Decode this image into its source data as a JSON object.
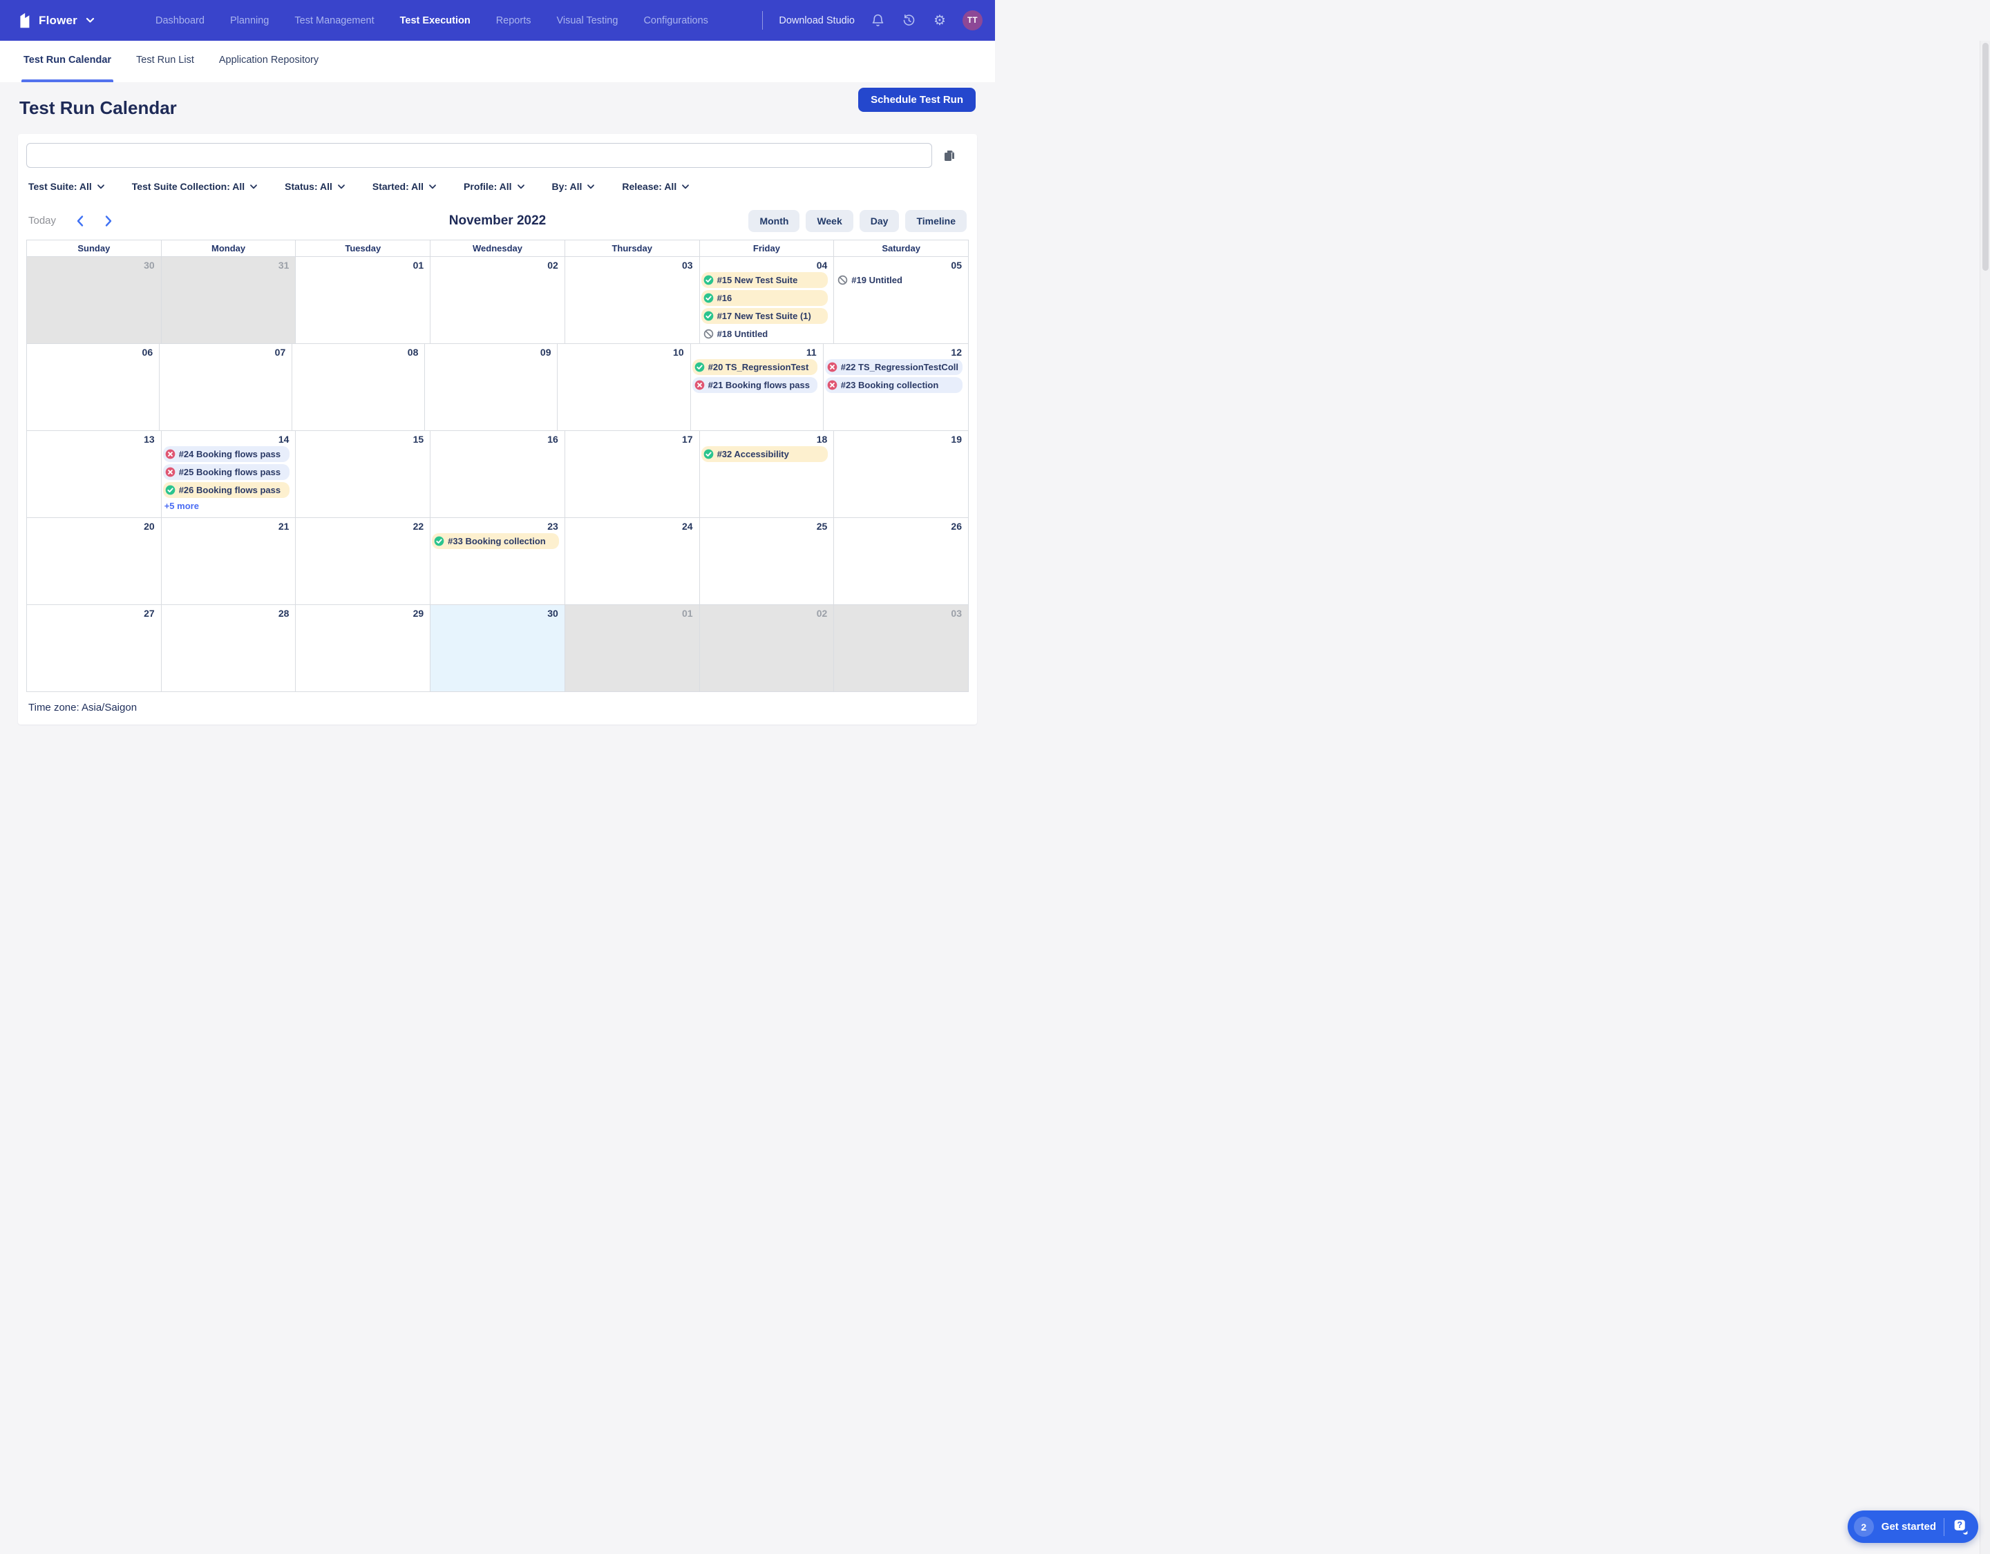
{
  "navbar": {
    "workspace": "Flower",
    "links": [
      {
        "label": "Dashboard",
        "active": false
      },
      {
        "label": "Planning",
        "active": false
      },
      {
        "label": "Test Management",
        "active": false
      },
      {
        "label": "Test Execution",
        "active": true
      },
      {
        "label": "Reports",
        "active": false
      },
      {
        "label": "Visual Testing",
        "active": false
      },
      {
        "label": "Configurations",
        "active": false
      }
    ],
    "download_studio": "Download Studio",
    "avatar_initials": "TT"
  },
  "tabs": [
    {
      "label": "Test Run Calendar",
      "active": true
    },
    {
      "label": "Test Run List",
      "active": false
    },
    {
      "label": "Application Repository",
      "active": false
    }
  ],
  "page": {
    "title": "Test Run Calendar",
    "schedule_button": "Schedule Test Run",
    "timezone": "Time zone: Asia/Saigon"
  },
  "search": {
    "value": ""
  },
  "filters": [
    {
      "label": "Test Suite: All"
    },
    {
      "label": "Test Suite Collection: All"
    },
    {
      "label": "Status: All"
    },
    {
      "label": "Started: All"
    },
    {
      "label": "Profile: All"
    },
    {
      "label": "By: All"
    },
    {
      "label": "Release: All"
    }
  ],
  "toolbar": {
    "today": "Today",
    "month_label": "November 2022",
    "views": [
      {
        "label": "Month"
      },
      {
        "label": "Week"
      },
      {
        "label": "Day"
      },
      {
        "label": "Timeline"
      }
    ]
  },
  "calendar": {
    "day_headers": [
      "Sunday",
      "Monday",
      "Tuesday",
      "Wednesday",
      "Thursday",
      "Friday",
      "Saturday"
    ],
    "weeks": [
      [
        {
          "num": "30",
          "outside": true,
          "today": false,
          "events": [],
          "more": null
        },
        {
          "num": "31",
          "outside": true,
          "today": false,
          "events": [],
          "more": null
        },
        {
          "num": "01",
          "outside": false,
          "today": false,
          "events": [],
          "more": null
        },
        {
          "num": "02",
          "outside": false,
          "today": false,
          "events": [],
          "more": null
        },
        {
          "num": "03",
          "outside": false,
          "today": false,
          "events": [],
          "more": null
        },
        {
          "num": "04",
          "outside": false,
          "today": false,
          "events": [
            {
              "label": "#15 New Test Suite",
              "status": "passed"
            },
            {
              "label": "#16",
              "status": "passed"
            },
            {
              "label": "#17 New Test Suite (1)",
              "status": "passed"
            },
            {
              "label": "#18 Untitled",
              "status": "aborted"
            }
          ],
          "more": null
        },
        {
          "num": "05",
          "outside": false,
          "today": false,
          "events": [
            {
              "label": "#19 Untitled",
              "status": "aborted"
            }
          ],
          "more": null
        }
      ],
      [
        {
          "num": "06",
          "outside": false,
          "today": false,
          "events": [],
          "more": null
        },
        {
          "num": "07",
          "outside": false,
          "today": false,
          "events": [],
          "more": null
        },
        {
          "num": "08",
          "outside": false,
          "today": false,
          "events": [],
          "more": null
        },
        {
          "num": "09",
          "outside": false,
          "today": false,
          "events": [],
          "more": null
        },
        {
          "num": "10",
          "outside": false,
          "today": false,
          "events": [],
          "more": null
        },
        {
          "num": "11",
          "outside": false,
          "today": false,
          "events": [
            {
              "label": "#20 TS_RegressionTest",
              "status": "passed"
            },
            {
              "label": "#21 Booking flows pass",
              "status": "failed"
            }
          ],
          "more": null
        },
        {
          "num": "12",
          "outside": false,
          "today": false,
          "events": [
            {
              "label": "#22 TS_RegressionTestColl",
              "status": "failed"
            },
            {
              "label": "#23 Booking collection",
              "status": "failed"
            }
          ],
          "more": null
        }
      ],
      [
        {
          "num": "13",
          "outside": false,
          "today": false,
          "events": [],
          "more": null
        },
        {
          "num": "14",
          "outside": false,
          "today": false,
          "events": [
            {
              "label": "#24 Booking flows pass",
              "status": "failed"
            },
            {
              "label": "#25 Booking flows pass",
              "status": "failed"
            },
            {
              "label": "#26 Booking flows pass",
              "status": "passed"
            }
          ],
          "more": "+5 more"
        },
        {
          "num": "15",
          "outside": false,
          "today": false,
          "events": [],
          "more": null
        },
        {
          "num": "16",
          "outside": false,
          "today": false,
          "events": [],
          "more": null
        },
        {
          "num": "17",
          "outside": false,
          "today": false,
          "events": [],
          "more": null
        },
        {
          "num": "18",
          "outside": false,
          "today": false,
          "events": [
            {
              "label": "#32 Accessibility",
              "status": "passed"
            }
          ],
          "more": null
        },
        {
          "num": "19",
          "outside": false,
          "today": false,
          "events": [],
          "more": null
        }
      ],
      [
        {
          "num": "20",
          "outside": false,
          "today": false,
          "events": [],
          "more": null
        },
        {
          "num": "21",
          "outside": false,
          "today": false,
          "events": [],
          "more": null
        },
        {
          "num": "22",
          "outside": false,
          "today": false,
          "events": [],
          "more": null
        },
        {
          "num": "23",
          "outside": false,
          "today": false,
          "events": [
            {
              "label": "#33 Booking collection",
              "status": "passed"
            }
          ],
          "more": null
        },
        {
          "num": "24",
          "outside": false,
          "today": false,
          "events": [],
          "more": null
        },
        {
          "num": "25",
          "outside": false,
          "today": false,
          "events": [],
          "more": null
        },
        {
          "num": "26",
          "outside": false,
          "today": false,
          "events": [],
          "more": null
        }
      ],
      [
        {
          "num": "27",
          "outside": false,
          "today": false,
          "events": [],
          "more": null
        },
        {
          "num": "28",
          "outside": false,
          "today": false,
          "events": [],
          "more": null
        },
        {
          "num": "29",
          "outside": false,
          "today": false,
          "events": [],
          "more": null
        },
        {
          "num": "30",
          "outside": false,
          "today": true,
          "events": [],
          "more": null
        },
        {
          "num": "01",
          "outside": true,
          "today": false,
          "events": [],
          "more": null
        },
        {
          "num": "02",
          "outside": true,
          "today": false,
          "events": [],
          "more": null
        },
        {
          "num": "03",
          "outside": true,
          "today": false,
          "events": [],
          "more": null
        }
      ]
    ]
  },
  "get_started": {
    "count": "2",
    "label": "Get started"
  },
  "colors": {
    "navbar_bg": "#3944cb",
    "primary_button": "#2447cd",
    "tab_underline": "#5272ee",
    "passed_event_bg": "#fdf0cf",
    "failed_event_bg": "#e8eefb",
    "passed_icon": "#2bc48e",
    "failed_icon": "#e05672",
    "aborted_icon": "#7d838d",
    "today_cell_bg": "#e7f4fd",
    "outside_cell_bg": "#e4e4e4",
    "link_blue": "#4a6cf3",
    "get_started_bg": "#2c62e9",
    "avatar_bg": "#8d4896"
  }
}
